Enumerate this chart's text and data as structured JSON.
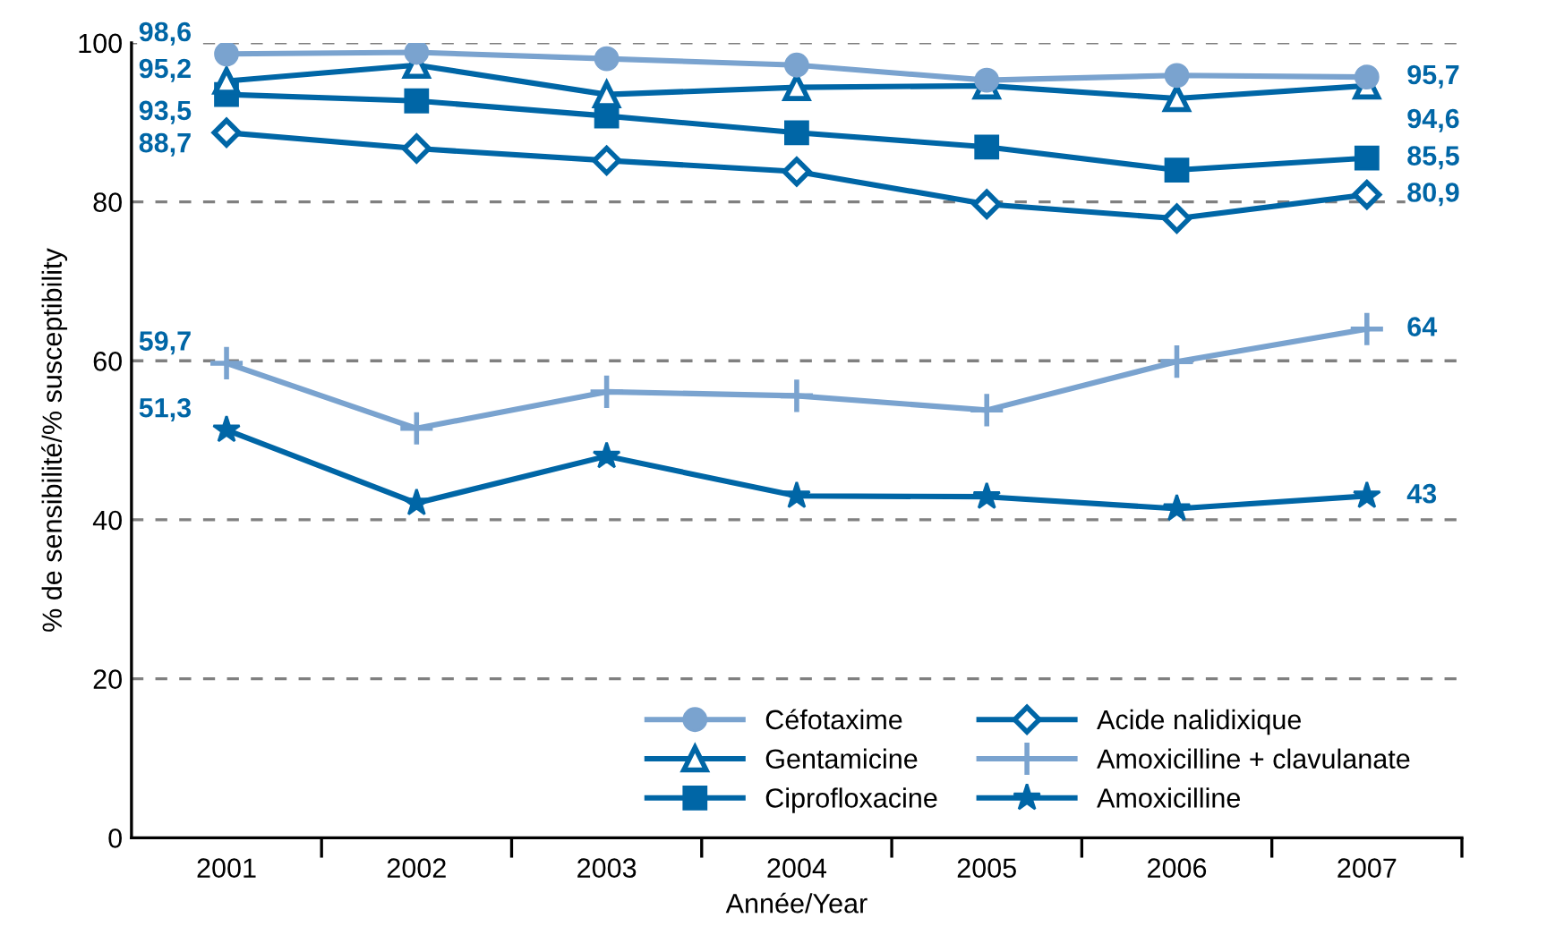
{
  "chart_data": {
    "type": "line",
    "xlabel": "Année/Year",
    "ylabel": "% de sensibilité/% susceptibility",
    "categories": [
      "2001",
      "2002",
      "2003",
      "2004",
      "2005",
      "2006",
      "2007"
    ],
    "series": [
      {
        "name": "Céfotaxime",
        "color": "#7aa3cf",
        "marker": "circle",
        "values": [
          98.6,
          98.8,
          98.0,
          97.2,
          95.3,
          95.9,
          95.7
        ],
        "value_labels": [
          "98,6",
          null,
          null,
          null,
          null,
          null,
          "95,7"
        ]
      },
      {
        "name": "Gentamicine",
        "color": "#0066a6",
        "marker": "triangle",
        "values": [
          95.2,
          97.2,
          93.5,
          94.4,
          94.6,
          93.0,
          94.6
        ],
        "value_labels": [
          "95,2",
          null,
          null,
          null,
          null,
          null,
          "94,6"
        ]
      },
      {
        "name": "Ciprofloxacine",
        "color": "#0066a6",
        "marker": "square",
        "values": [
          93.5,
          92.7,
          90.8,
          88.7,
          86.9,
          84.0,
          85.5
        ],
        "value_labels": [
          "93,5",
          null,
          null,
          null,
          null,
          null,
          "85,5"
        ]
      },
      {
        "name": "Acide nalidixique",
        "color": "#0066a6",
        "marker": "diamond",
        "values": [
          88.7,
          86.7,
          85.2,
          83.8,
          79.7,
          77.9,
          80.9
        ],
        "value_labels": [
          "88,7",
          null,
          null,
          null,
          null,
          null,
          "80,9"
        ]
      },
      {
        "name": "Amoxicilline + clavulanate",
        "color": "#7aa3cf",
        "marker": "cross",
        "values": [
          59.7,
          51.5,
          56.1,
          55.6,
          53.8,
          59.9,
          64
        ],
        "value_labels": [
          "59,7",
          null,
          null,
          null,
          null,
          null,
          "64"
        ]
      },
      {
        "name": "Amoxicilline",
        "color": "#0066a6",
        "marker": "star",
        "values": [
          51.3,
          42.1,
          48.0,
          43.0,
          42.9,
          41.4,
          43
        ],
        "value_labels": [
          "51,3",
          null,
          null,
          null,
          null,
          null,
          "43"
        ]
      }
    ],
    "ylim": [
      0,
      100
    ],
    "yticks": [
      0,
      20,
      40,
      60,
      80,
      100
    ],
    "grid": "y",
    "legend": "bottom right",
    "line_style": "solid"
  }
}
